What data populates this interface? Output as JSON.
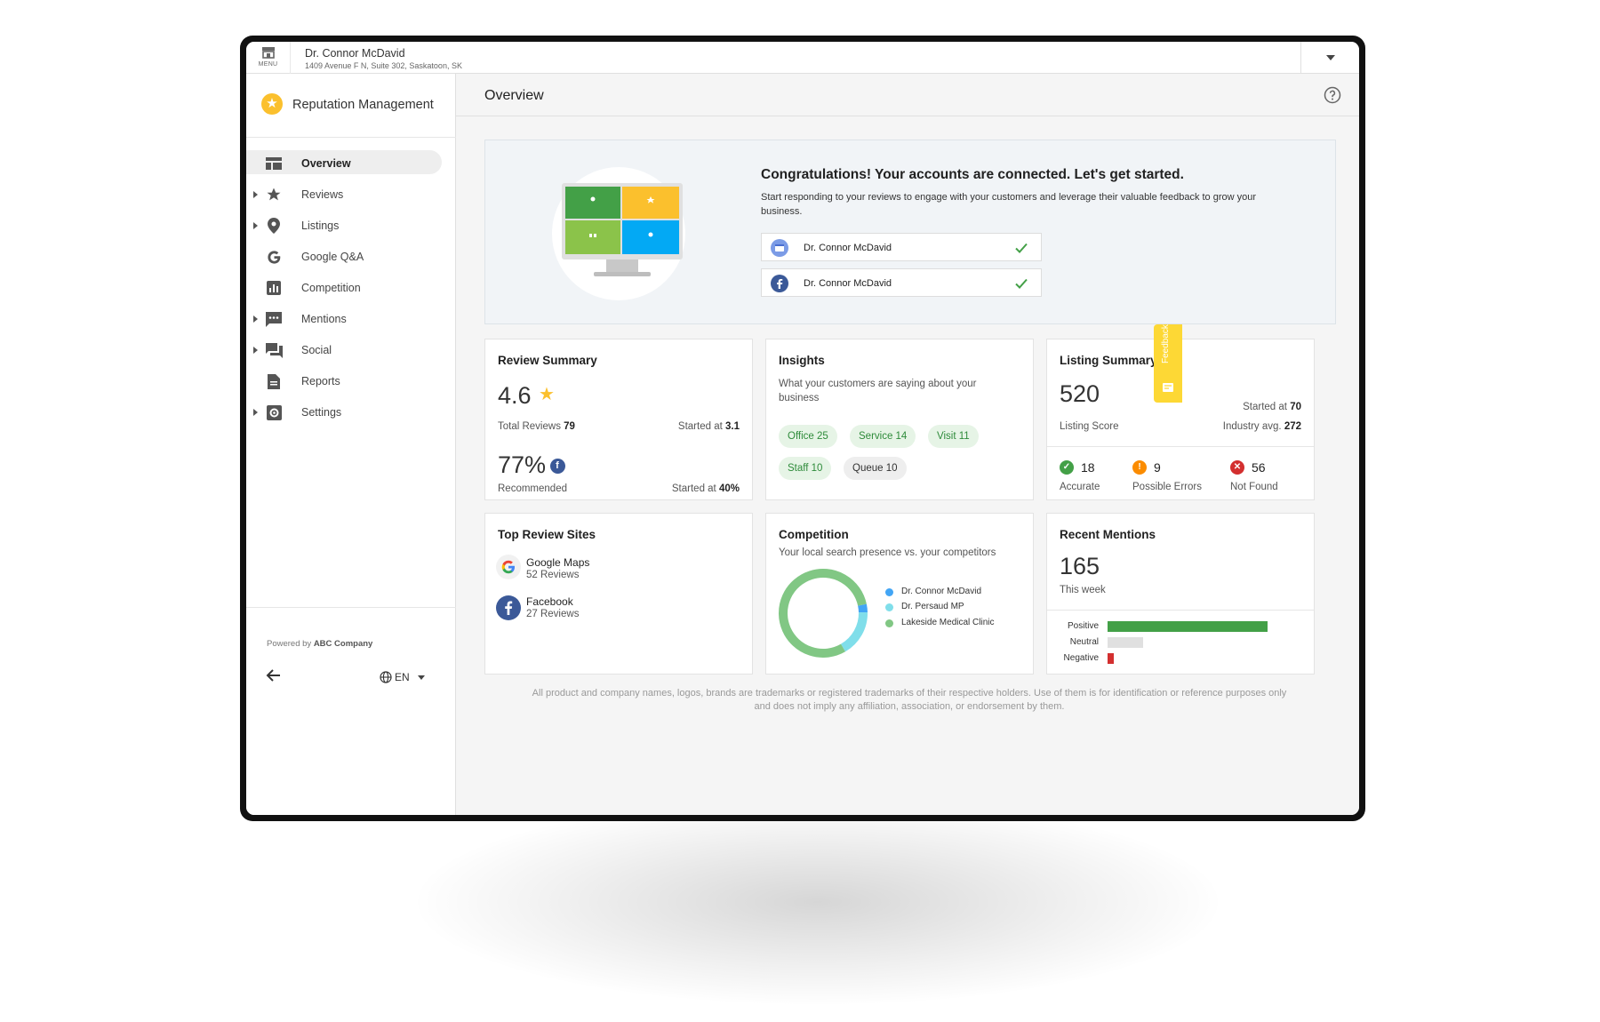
{
  "topbar": {
    "menu_label": "MENU",
    "business_name": "Dr. Connor McDavid",
    "business_address": "1409 Avenue F N, Suite 302, Saskatoon, SK"
  },
  "sidebar": {
    "app_title": "Reputation Management",
    "items": [
      {
        "label": "Overview",
        "icon": "overview-icon",
        "expandable": false,
        "active": true
      },
      {
        "label": "Reviews",
        "icon": "star-icon",
        "expandable": true
      },
      {
        "label": "Listings",
        "icon": "location-pin-icon",
        "expandable": true
      },
      {
        "label": "Google Q&A",
        "icon": "google-g-icon",
        "expandable": false
      },
      {
        "label": "Competition",
        "icon": "bar-chart-icon",
        "expandable": false
      },
      {
        "label": "Mentions",
        "icon": "chat-bubble-icon",
        "expandable": true
      },
      {
        "label": "Social",
        "icon": "forum-icon",
        "expandable": true
      },
      {
        "label": "Reports",
        "icon": "document-icon",
        "expandable": false
      },
      {
        "label": "Settings",
        "icon": "gear-icon",
        "expandable": true
      }
    ],
    "powered_prefix": "Powered by",
    "powered_company": "ABC Company",
    "language": "EN"
  },
  "header": {
    "title": "Overview"
  },
  "hero": {
    "title": "Congratulations! Your accounts are connected. Let's get started.",
    "text": "Start responding to your reviews to engage with your customers and leverage their valuable feedback to grow your business.",
    "accounts": [
      {
        "name": "Dr. Connor McDavid",
        "icon": "google-my-business-icon"
      },
      {
        "name": "Dr. Connor McDavid",
        "icon": "facebook-icon"
      }
    ]
  },
  "review_summary": {
    "title": "Review Summary",
    "rating": "4.6",
    "total_label": "Total Reviews",
    "total": "79",
    "started_label": "Started at",
    "started": "3.1",
    "recommended": "77%",
    "recommended_label": "Recommended",
    "rec_started_label": "Started at",
    "rec_started": "40%"
  },
  "insights": {
    "title": "Insights",
    "subtitle": "What your customers are saying about your business",
    "tags": [
      {
        "label": "Office 25",
        "sentiment": "positive"
      },
      {
        "label": "Service 14",
        "sentiment": "positive"
      },
      {
        "label": "Visit 11",
        "sentiment": "positive"
      },
      {
        "label": "Staff 10",
        "sentiment": "positive"
      },
      {
        "label": "Queue 10",
        "sentiment": "neutral"
      }
    ]
  },
  "listing_summary": {
    "title": "Listing Summary",
    "score": "520",
    "score_label": "Listing Score",
    "started_label": "Started at",
    "started": "70",
    "industry_label": "Industry avg.",
    "industry": "272",
    "accurate": "18",
    "accurate_label": "Accurate",
    "errors": "9",
    "errors_label": "Possible Errors",
    "not_found": "56",
    "not_found_label": "Not Found"
  },
  "top_sites": {
    "title": "Top Review Sites",
    "sites": [
      {
        "name": "Google Maps",
        "reviews": "52 Reviews",
        "icon": "google-icon"
      },
      {
        "name": "Facebook",
        "reviews": "27 Reviews",
        "icon": "facebook-icon"
      }
    ]
  },
  "competition": {
    "title": "Competition",
    "subtitle": "Your local search presence vs. your competitors",
    "colors": [
      "#42a5f5",
      "#80deea",
      "#81c784"
    ],
    "chart_data": {
      "type": "pie",
      "categories": [
        "Dr. Connor McDavid",
        "Dr. Persaud MP",
        "Lakeside Medical Clinic"
      ],
      "values": [
        3,
        17,
        80
      ]
    }
  },
  "recent_mentions": {
    "title": "Recent Mentions",
    "count": "165",
    "period": "This week",
    "colors": [
      "#43a047",
      "#e0e0e0",
      "#d32f2f"
    ],
    "chart_data": {
      "type": "bar",
      "categories": [
        "Positive",
        "Neutral",
        "Negative"
      ],
      "values": [
        100,
        22,
        4
      ]
    }
  },
  "disclaimer": "All product and company names, logos, brands are trademarks or registered trademarks of their respective holders. Use of them is for identification or reference purposes only and does not imply any affiliation, association, or endorsement by them.",
  "feedback": "Feedback"
}
